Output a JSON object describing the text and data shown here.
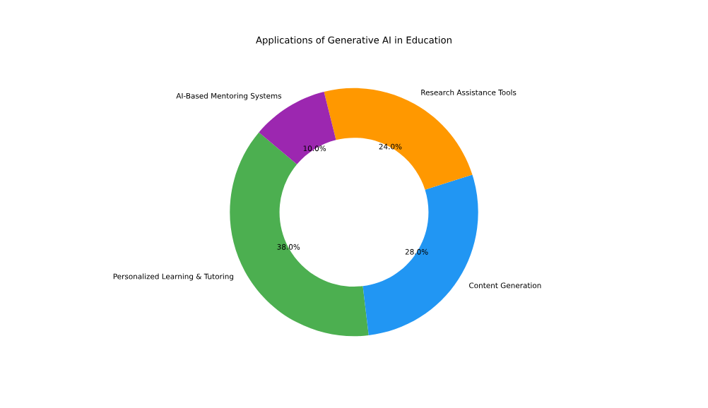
{
  "chart_data": {
    "type": "donut",
    "title": "Applications of Generative AI in Education",
    "categories": [
      "Personalized Learning & Tutoring",
      "Content Generation",
      "Research Assistance Tools",
      "AI-Based Mentoring Systems"
    ],
    "values": [
      38,
      28,
      24,
      10
    ],
    "colors": [
      "#4caf50",
      "#2196f3",
      "#ff9800",
      "#9c27b0"
    ],
    "value_labels": [
      "38.0%",
      "28.0%",
      "24.0%",
      "10.0%"
    ],
    "legend": false
  }
}
